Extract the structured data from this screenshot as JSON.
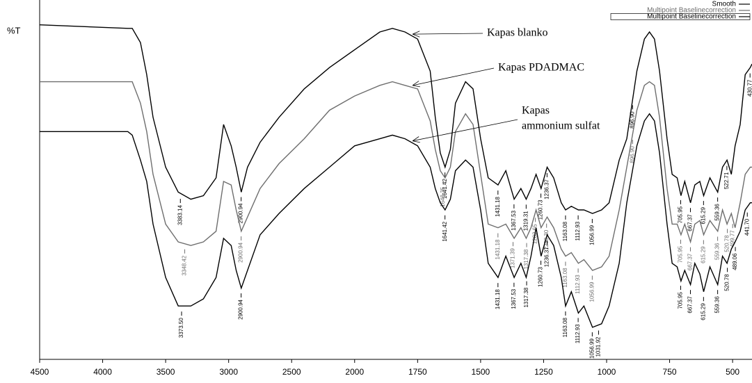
{
  "chart_data": {
    "type": "line",
    "y_label": "%T",
    "x": [
      4500,
      3800,
      3765,
      3700,
      3650,
      3600,
      3500,
      3400,
      3300,
      3200,
      3100,
      3040,
      2980,
      2940,
      2900,
      2850,
      2750,
      2600,
      2400,
      2200,
      2000,
      1900,
      1850,
      1800,
      1750,
      1700,
      1680,
      1660,
      1641,
      1620,
      1600,
      1560,
      1530,
      1500,
      1470,
      1431,
      1400,
      1367,
      1340,
      1319,
      1300,
      1280,
      1260,
      1236,
      1210,
      1180,
      1163,
      1140,
      1112,
      1090,
      1056,
      1020,
      990,
      950,
      920,
      880,
      850,
      830,
      810,
      790,
      760,
      740,
      720,
      705,
      690,
      667,
      650,
      630,
      615,
      590,
      559,
      540,
      522,
      505,
      490,
      470,
      450,
      430,
      423
    ],
    "series": [
      {
        "name": "Smooth",
        "color": "#000000",
        "values": [
          94,
          93,
          93,
          89,
          80,
          68,
          54,
          47,
          45,
          46,
          51,
          66,
          60,
          54,
          47,
          54,
          61,
          68,
          76,
          82,
          87,
          92,
          93,
          92,
          90,
          81,
          68,
          58,
          54,
          59,
          72,
          78,
          76,
          62,
          51,
          49,
          53,
          45,
          48,
          45,
          48,
          52,
          48,
          54,
          51,
          44,
          42,
          43,
          42,
          42,
          41,
          42,
          44,
          56,
          62,
          81,
          90,
          92,
          90,
          81,
          62,
          52,
          51,
          46,
          50,
          44,
          49,
          50,
          46,
          51,
          47,
          54,
          56,
          52,
          60,
          66,
          80,
          82,
          83
        ],
        "peak_labels": [
          "3383.14",
          "2900.94",
          "1641.42",
          "1431.18",
          "1367.53",
          "1319.31",
          "1260.73",
          "1236.37",
          "1163.08",
          "1112.93",
          "1056.99",
          "896.90",
          "705.95",
          "667.37",
          "615.29",
          "559.36",
          "522.71",
          "430.77"
        ]
      },
      {
        "name": "Multipoint Baselinecorrection",
        "color": "#6e6e6e",
        "values": [
          78,
          78,
          78,
          72,
          64,
          52,
          38,
          33,
          32,
          33,
          36,
          50,
          49,
          42,
          36,
          40,
          48,
          55,
          62,
          70,
          74,
          77,
          78,
          77,
          76,
          67,
          59,
          53,
          51,
          54,
          64,
          69,
          66,
          52,
          38,
          37,
          38,
          34,
          37,
          34,
          37,
          42,
          37,
          40,
          37,
          31,
          29,
          30,
          27,
          28,
          25,
          26,
          29,
          42,
          54,
          70,
          77,
          78,
          77,
          68,
          48,
          38,
          38,
          35,
          38,
          33,
          38,
          39,
          35,
          39,
          36,
          42,
          38,
          41,
          37,
          44,
          52,
          54,
          54
        ],
        "peak_labels": [
          "3348.42",
          "2900.94",
          "1648.35",
          "1431.18",
          "1371.39",
          "1317.38",
          "1282.65",
          "1238.30",
          "1163.08",
          "1112.93",
          "1056.99",
          "896.90",
          "705.95",
          "667.37",
          "615.29",
          "559.36",
          "520.78",
          "499.77"
        ]
      },
      {
        "name": "Multipoint Baselinecorrection",
        "color": "#000000",
        "values": [
          64,
          64,
          63,
          56,
          50,
          38,
          23,
          15,
          15,
          17,
          23,
          34,
          32,
          25,
          20,
          25,
          35,
          41,
          48,
          54,
          60,
          62,
          63,
          62,
          60,
          54,
          48,
          44,
          42,
          45,
          53,
          56,
          54,
          42,
          27,
          23,
          29,
          23,
          27,
          23,
          29,
          37,
          29,
          35,
          32,
          23,
          15,
          19,
          13,
          15,
          9,
          10,
          15,
          27,
          44,
          60,
          67,
          69,
          67,
          58,
          38,
          27,
          26,
          22,
          25,
          21,
          27,
          24,
          19,
          26,
          21,
          29,
          27,
          31,
          33,
          36,
          42,
          44,
          44
        ],
        "peak_labels": [
          "3373.50",
          "2900.94",
          "1641.42",
          "1431.18",
          "1367.53",
          "1317.38",
          "1260.73",
          "1236.37",
          "1163.08",
          "1112.93",
          "1056.99",
          "1031.92",
          "705.95",
          "667.37",
          "615.29",
          "559.36",
          "520.78",
          "489.06",
          "441.70"
        ]
      }
    ],
    "annotations": [
      [
        "Kapas blanko"
      ],
      [
        "Kapas PDADMAC"
      ],
      [
        "Kapas",
        "ammonium sulfat"
      ]
    ],
    "xlim": [
      4500,
      423
    ],
    "x_expand_below": 2000,
    "x_expand_factor": 2,
    "xticks": [
      4500,
      4000,
      3500,
      3000,
      2500,
      2000,
      1750,
      1500,
      1250,
      1000,
      750,
      500
    ],
    "ylim": [
      0,
      100
    ],
    "legend": "top-right"
  }
}
